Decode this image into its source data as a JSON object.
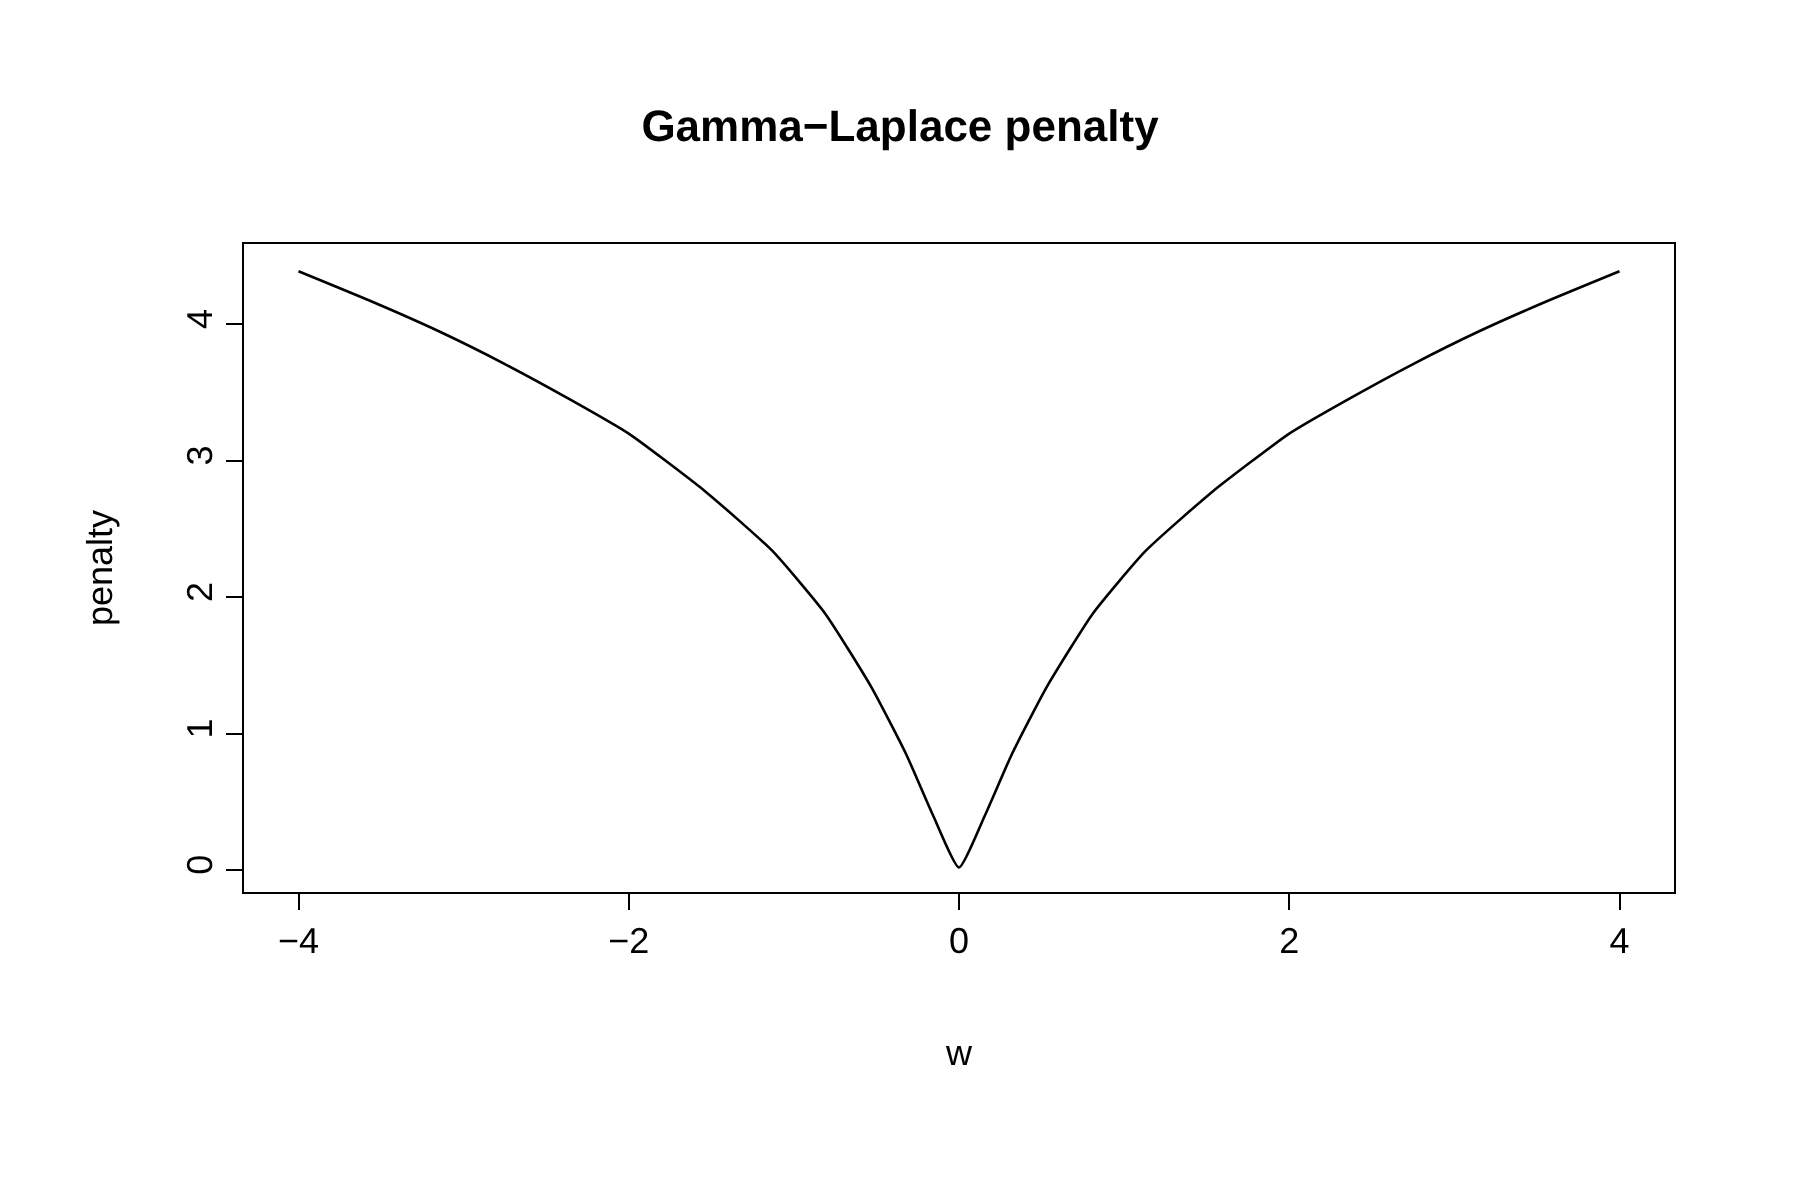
{
  "chart_data": {
    "type": "line",
    "title": "Gamma−Laplace penalty",
    "xlabel": "w",
    "ylabel": "penalty",
    "x": [
      -4,
      -3.56,
      -3.15,
      -2.75,
      -2.34,
      -2,
      -1.54,
      -1.13,
      -0.81,
      -0.53,
      -0.32,
      -0.16,
      0,
      0.16,
      0.32,
      0.53,
      0.81,
      1.13,
      1.54,
      2,
      2.34,
      2.75,
      3.15,
      3.56,
      4
    ],
    "series": [
      {
        "color": "#000000",
        "values": [
          4.39,
          4.17,
          3.95,
          3.71,
          3.44,
          3.2,
          2.78,
          2.34,
          1.88,
          1.34,
          0.85,
          0.41,
          0.02,
          0.41,
          0.85,
          1.34,
          1.88,
          2.34,
          2.78,
          3.2,
          3.44,
          3.71,
          3.95,
          4.17,
          4.39
        ]
      }
    ],
    "xlim": [
      -4.33,
      4.33
    ],
    "ylim": [
      -0.16,
      4.59
    ],
    "xticks": [
      -4,
      -2,
      0,
      2,
      4
    ],
    "yticks": [
      0,
      1,
      2,
      3,
      4
    ],
    "marker": "none",
    "line_style": "solid"
  }
}
